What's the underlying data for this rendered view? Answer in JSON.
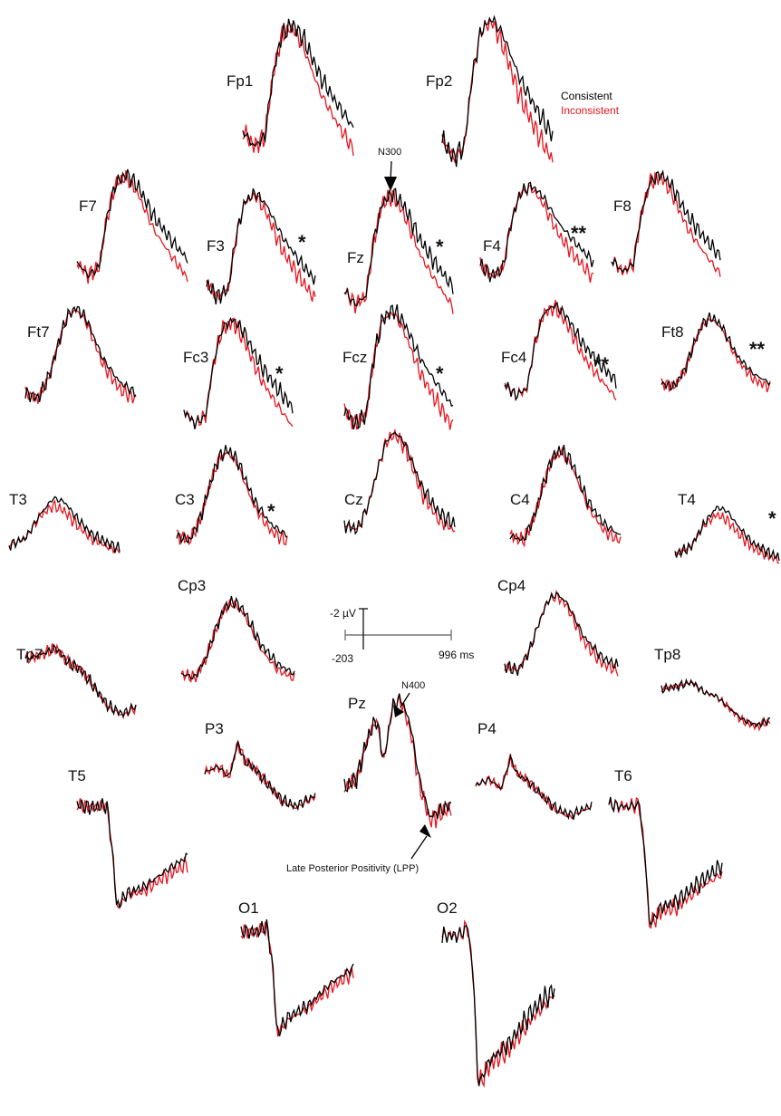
{
  "chart_data": {
    "type": "line",
    "title": "",
    "legend": [
      {
        "name": "Consistent",
        "color": "#000000"
      },
      {
        "name": "Inconsistent",
        "color": "#e8141e"
      }
    ],
    "scale": {
      "y_label": "-2 µV",
      "x_start_label": "-203",
      "x_end_label": "996 ms",
      "x_range_ms": [
        -203,
        996
      ],
      "y_amplitude_uV": -2
    },
    "annotations": [
      {
        "text": "N300",
        "electrode": "Fz"
      },
      {
        "text": "N400",
        "electrode": "Pz"
      },
      {
        "text": "Late Posterior Positivity (LPP)",
        "electrode": "Pz"
      }
    ],
    "electrodes": [
      {
        "label": "Fp1",
        "sig": "",
        "shape": "frontal"
      },
      {
        "label": "Fp2",
        "sig": "",
        "shape": "frontal"
      },
      {
        "label": "F7",
        "sig": "",
        "shape": "frontal"
      },
      {
        "label": "F3",
        "sig": "*",
        "shape": "frontal"
      },
      {
        "label": "Fz",
        "sig": "*",
        "shape": "frontal"
      },
      {
        "label": "F4",
        "sig": "**",
        "shape": "frontal"
      },
      {
        "label": "F8",
        "sig": "",
        "shape": "frontal"
      },
      {
        "label": "Ft7",
        "sig": "",
        "shape": "central"
      },
      {
        "label": "Fc3",
        "sig": "*",
        "shape": "frontal"
      },
      {
        "label": "Fcz",
        "sig": "*",
        "shape": "frontal"
      },
      {
        "label": "Fc4",
        "sig": "**",
        "shape": "frontal"
      },
      {
        "label": "Ft8",
        "sig": "**",
        "shape": "central"
      },
      {
        "label": "T3",
        "sig": "",
        "shape": "temporal"
      },
      {
        "label": "C3",
        "sig": "*",
        "shape": "central"
      },
      {
        "label": "Cz",
        "sig": "",
        "shape": "central"
      },
      {
        "label": "C4",
        "sig": "",
        "shape": "central"
      },
      {
        "label": "T4",
        "sig": "*",
        "shape": "temporal"
      },
      {
        "label": "Cp3",
        "sig": "",
        "shape": "central"
      },
      {
        "label": "Cp4",
        "sig": "",
        "shape": "central"
      },
      {
        "label": "Tp7",
        "sig": "",
        "shape": "decline"
      },
      {
        "label": "Tp8",
        "sig": "",
        "shape": "decline"
      },
      {
        "label": "P3",
        "sig": "",
        "shape": "parietal"
      },
      {
        "label": "Pz",
        "sig": "",
        "shape": "pz"
      },
      {
        "label": "P4",
        "sig": "",
        "shape": "parietal"
      },
      {
        "label": "T5",
        "sig": "",
        "shape": "drop"
      },
      {
        "label": "T6",
        "sig": "",
        "shape": "drop"
      },
      {
        "label": "O1",
        "sig": "",
        "shape": "occipital"
      },
      {
        "label": "O2",
        "sig": "",
        "shape": "occipital"
      }
    ]
  }
}
